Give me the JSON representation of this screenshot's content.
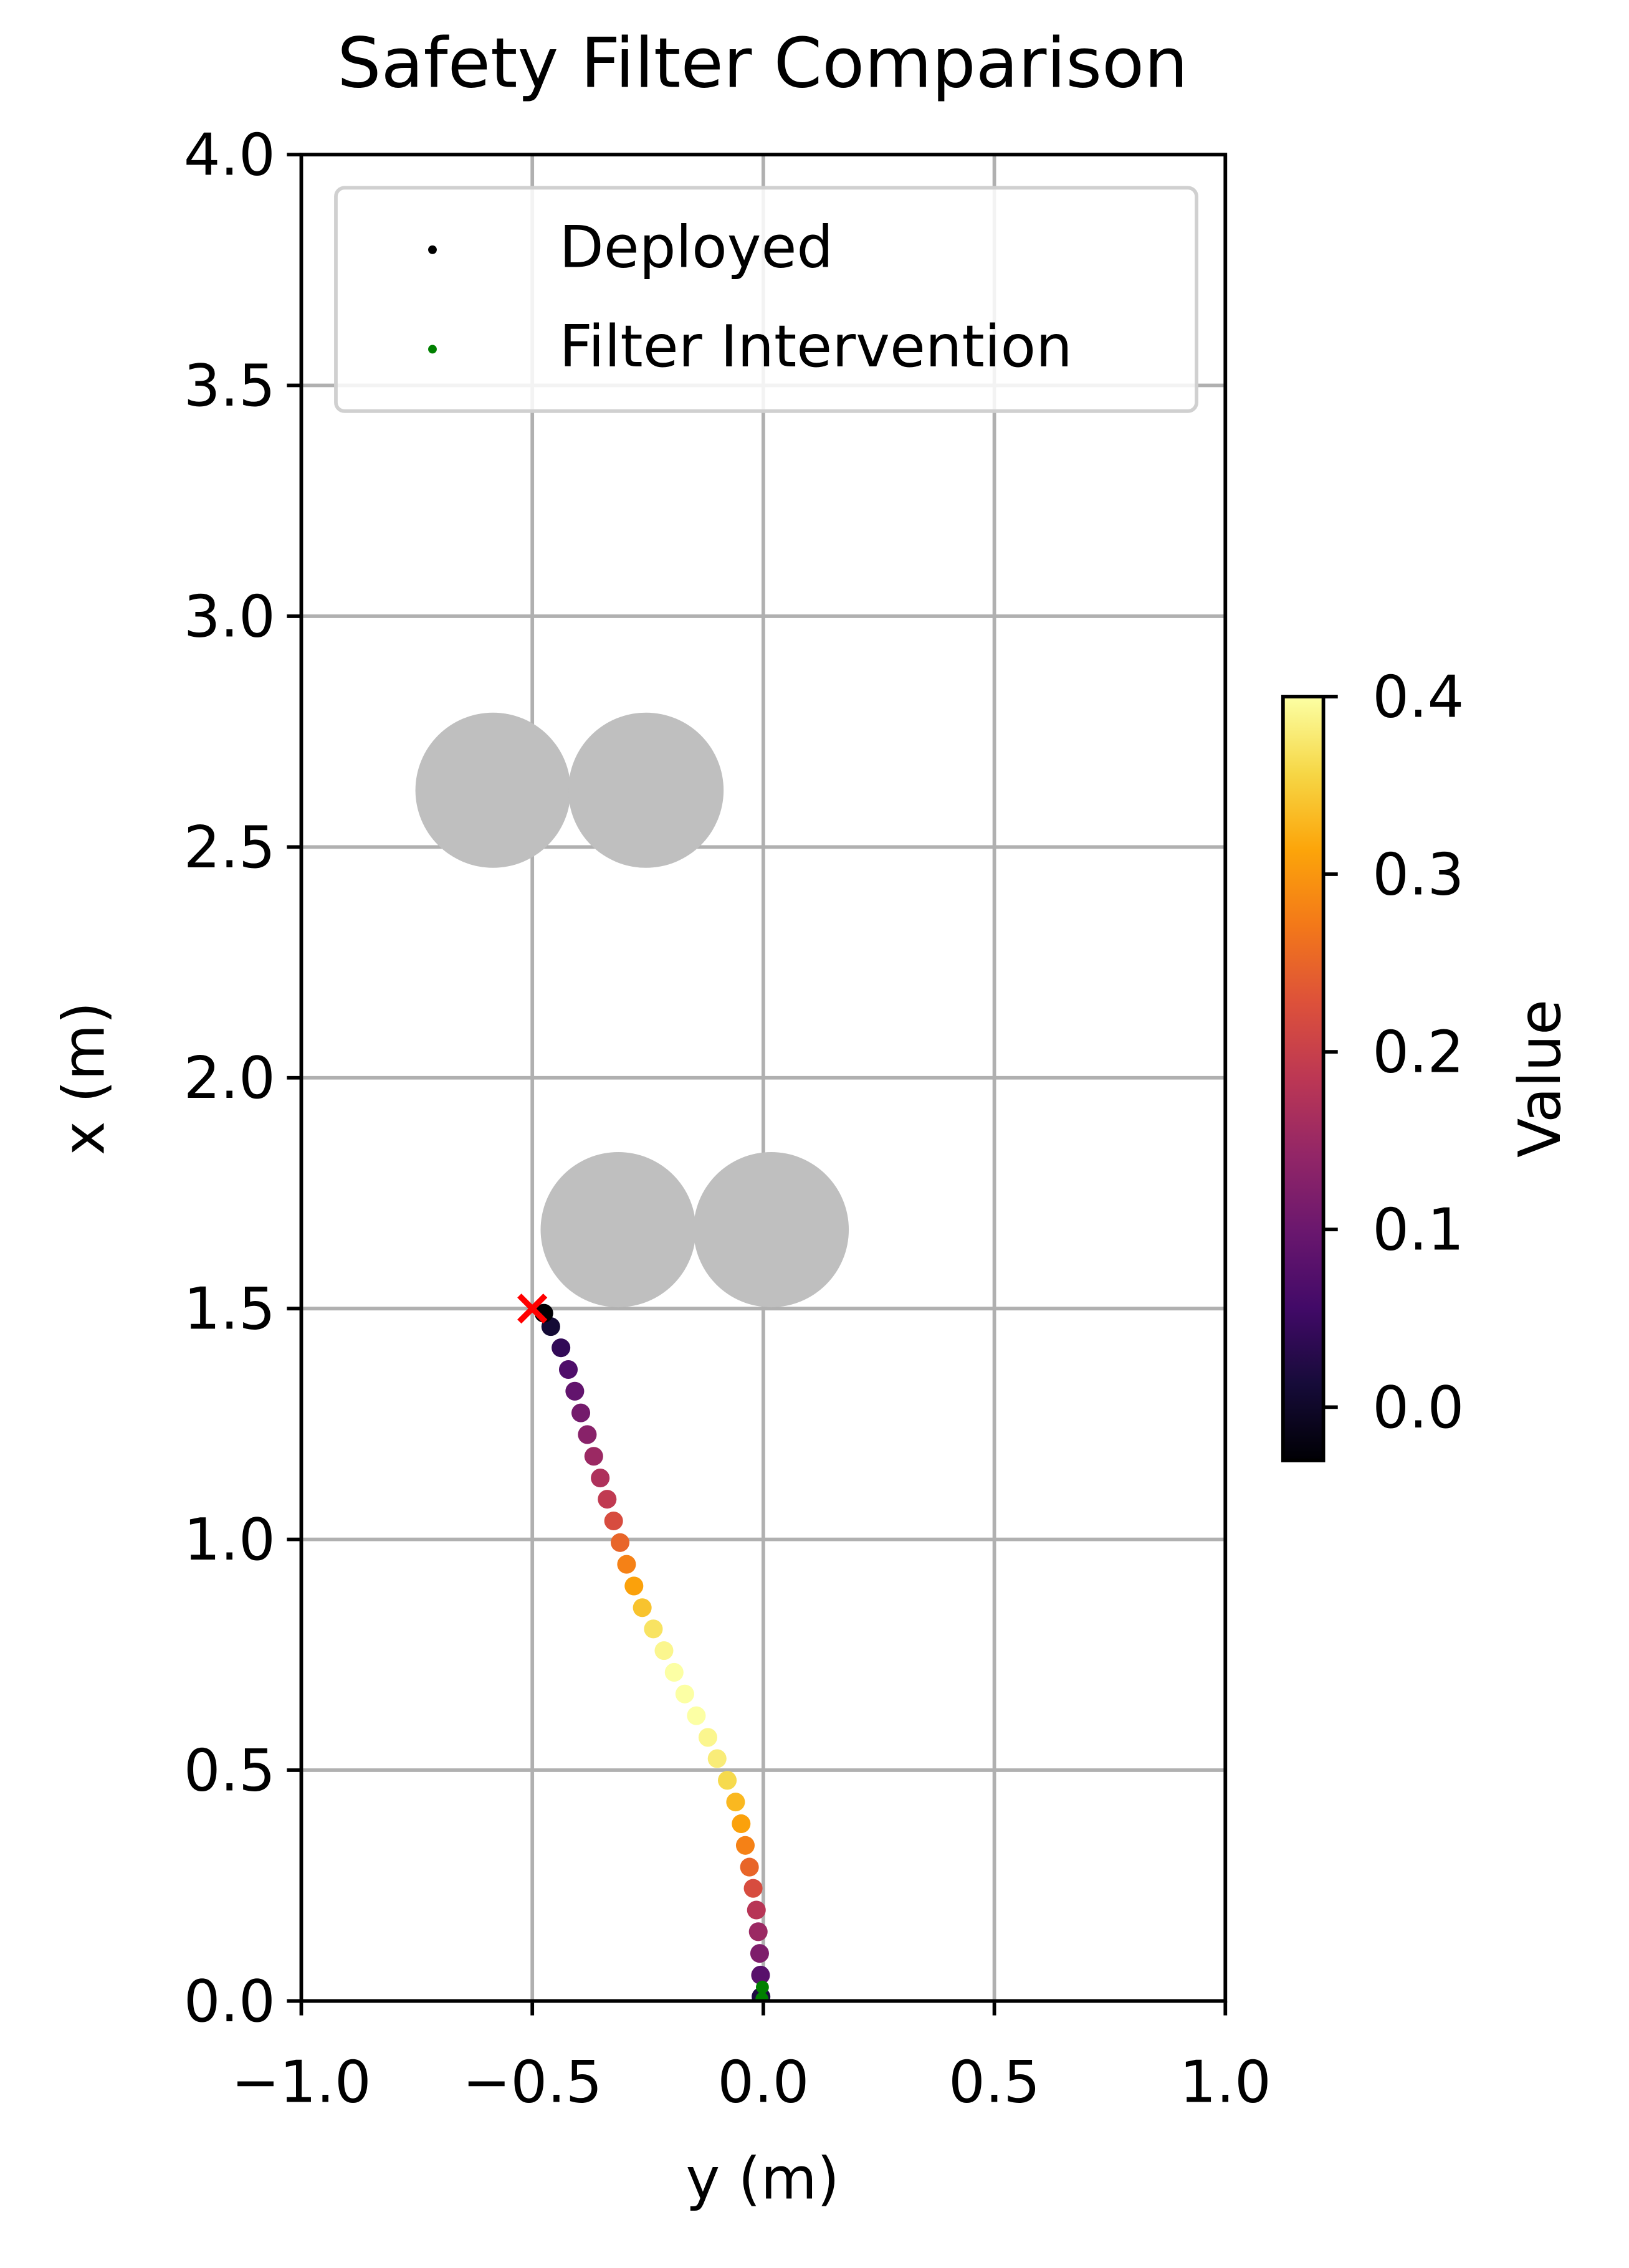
{
  "chart_data": {
    "type": "scatter",
    "title": "Safety Filter Comparison",
    "xlabel": "y (m)",
    "ylabel": "x (m)",
    "xlim": [
      -1,
      1
    ],
    "ylim": [
      0,
      4
    ],
    "xticks": [
      {
        "value": -1,
        "label": "−1.0"
      },
      {
        "value": -0.5,
        "label": "−0.5"
      },
      {
        "value": 0,
        "label": "0.0"
      },
      {
        "value": 0.5,
        "label": "0.5"
      },
      {
        "value": 1,
        "label": "1.0"
      }
    ],
    "yticks": [
      {
        "value": 0,
        "label": "0.0"
      },
      {
        "value": 0.5,
        "label": "0.5"
      },
      {
        "value": 1,
        "label": "1.0"
      },
      {
        "value": 1.5,
        "label": "1.5"
      },
      {
        "value": 2,
        "label": "2.0"
      },
      {
        "value": 2.5,
        "label": "2.5"
      },
      {
        "value": 3,
        "label": "3.0"
      },
      {
        "value": 3.5,
        "label": "3.5"
      },
      {
        "value": 4,
        "label": "4.0"
      }
    ],
    "grid": true,
    "legend": "upper center",
    "series": [
      {
        "name": "Deployed",
        "color": "#000000",
        "x": [
          -0.005,
          -0.006,
          -0.008,
          -0.011,
          -0.015,
          -0.022,
          -0.03,
          -0.039,
          -0.048,
          -0.06,
          -0.078,
          -0.1,
          -0.12,
          -0.145,
          -0.17,
          -0.193,
          -0.215,
          -0.238,
          -0.262,
          -0.28,
          -0.296,
          -0.31,
          -0.324,
          -0.338,
          -0.353,
          -0.367,
          -0.381,
          -0.395,
          -0.408,
          -0.422,
          -0.438,
          -0.46,
          -0.475
        ],
        "values": [
          0.009,
          0.056,
          0.103,
          0.15,
          0.197,
          0.244,
          0.29,
          0.337,
          0.384,
          0.431,
          0.478,
          0.525,
          0.571,
          0.618,
          0.665,
          0.712,
          0.759,
          0.806,
          0.852,
          0.899,
          0.946,
          0.993,
          1.04,
          1.087,
          1.133,
          1.18,
          1.227,
          1.274,
          1.321,
          1.368,
          1.415,
          1.461,
          1.49
        ],
        "c": [
          0.02,
          0.08,
          0.12,
          0.15,
          0.18,
          0.22,
          0.25,
          0.28,
          0.31,
          0.33,
          0.36,
          0.38,
          0.39,
          0.4,
          0.4,
          0.4,
          0.39,
          0.37,
          0.34,
          0.31,
          0.28,
          0.25,
          0.22,
          0.19,
          0.17,
          0.15,
          0.13,
          0.11,
          0.09,
          0.07,
          0.04,
          0.01,
          -0.03
        ]
      },
      {
        "name": "Filter Intervention",
        "color": "#008000",
        "x": [
          -0.003,
          -0.002
        ],
        "values": [
          0.005,
          0.03
        ]
      }
    ],
    "obstacles": [
      {
        "x": -0.585,
        "y": 2.623,
        "r": 0.168,
        "color": "#bfbfbf"
      },
      {
        "x": -0.254,
        "y": 2.623,
        "r": 0.168,
        "color": "#bfbfbf"
      },
      {
        "x": -0.314,
        "y": 1.671,
        "r": 0.168,
        "color": "#bfbfbf"
      },
      {
        "x": 0.017,
        "y": 1.671,
        "r": 0.168,
        "color": "#bfbfbf"
      }
    ],
    "crash": {
      "x": -0.5,
      "y": 1.5,
      "color": "#ff0000"
    },
    "colorbar": {
      "label": "Value",
      "colormap": "inferno",
      "clim": [
        -0.03,
        0.4
      ],
      "ticks": [
        {
          "value": 0,
          "label": "0.0"
        },
        {
          "value": 0.1,
          "label": "0.1"
        },
        {
          "value": 0.2,
          "label": "0.2"
        },
        {
          "value": 0.3,
          "label": "0.3"
        },
        {
          "value": 0.4,
          "label": "0.4"
        }
      ]
    }
  }
}
